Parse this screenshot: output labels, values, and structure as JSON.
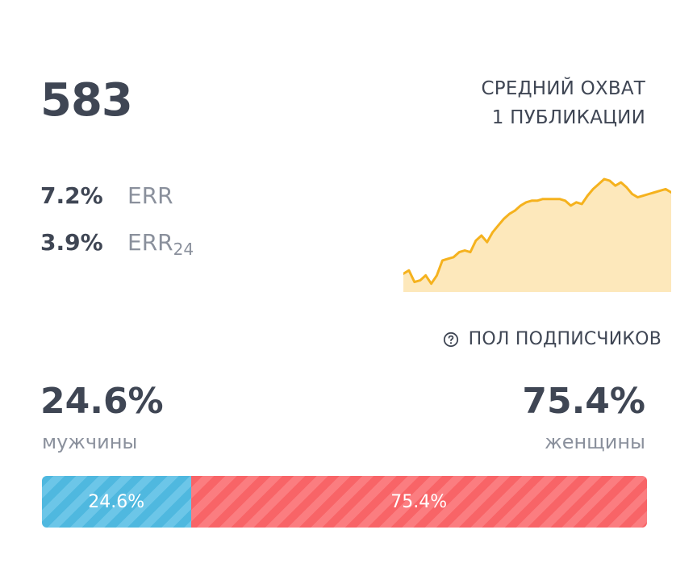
{
  "reach": {
    "value": "583",
    "label_line1": "СРЕДНИЙ ОХВАТ",
    "label_line2": "1 ПУБЛИКАЦИИ"
  },
  "engagement": {
    "err_value": "7.2%",
    "err_label": "ERR",
    "err24_value": "3.9%",
    "err24_label": "ERR",
    "err24_sub": "24"
  },
  "sparkline": {
    "stroke_color": "#f5b21e",
    "fill_color": "#fde8bb",
    "values": [
      22,
      26,
      12,
      14,
      20,
      10,
      20,
      38,
      40,
      42,
      48,
      50,
      48,
      62,
      68,
      60,
      72,
      80,
      88,
      94,
      98,
      104,
      108,
      110,
      110,
      112,
      112,
      112,
      112,
      110,
      104,
      108,
      106,
      116,
      124,
      130,
      136,
      134,
      128,
      132,
      126,
      118,
      114,
      116,
      118,
      120,
      122,
      124,
      120
    ]
  },
  "gender": {
    "title": "ПОЛ ПОДПИСЧИКОВ",
    "male_pct": "24.6%",
    "male_label": "мужчины",
    "female_pct": "75.4%",
    "female_label": "женщины",
    "male_share": 24.6,
    "female_share": 75.4,
    "male_color": "#4fb8df",
    "female_color": "#f86467"
  }
}
